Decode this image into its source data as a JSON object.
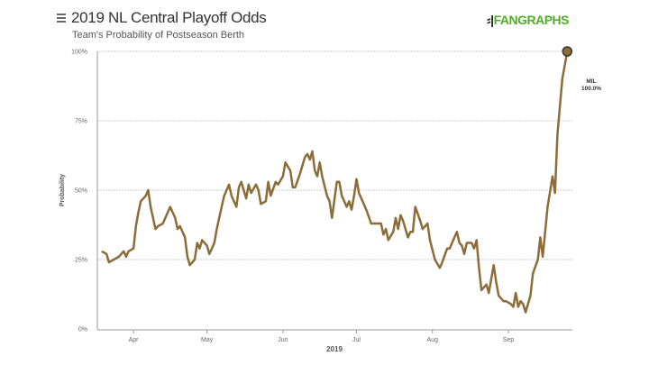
{
  "header": {
    "title": "2019 NL Central Playoff Odds",
    "subtitle": "Team's Probability of Postseason Berth",
    "logo": "FANGRAPHS"
  },
  "chart_data": {
    "type": "line",
    "title": "2019 NL Central Playoff Odds",
    "subtitle": "Team's Probability of Postseason Berth",
    "xlabel": "2019",
    "ylabel": "Probability",
    "xlim": [
      "2019-03-18",
      "2019-09-26"
    ],
    "ylim": [
      0,
      100
    ],
    "x_ticks": [
      {
        "date": "2019-04-01",
        "label": "Apr"
      },
      {
        "date": "2019-05-01",
        "label": "May"
      },
      {
        "date": "2019-06-01",
        "label": "Jun"
      },
      {
        "date": "2019-07-01",
        "label": "Jul"
      },
      {
        "date": "2019-08-01",
        "label": "Aug"
      },
      {
        "date": "2019-09-01",
        "label": "Sep"
      }
    ],
    "y_ticks": [
      {
        "value": 0,
        "label": "0%"
      },
      {
        "value": 25,
        "label": "25%"
      },
      {
        "value": 50,
        "label": "50%"
      },
      {
        "value": 75,
        "label": "75%"
      },
      {
        "value": 100,
        "label": "100%"
      }
    ],
    "grid": "horizontal dotted",
    "series": [
      {
        "name": "MIL",
        "color": "#8c6d3a",
        "end_label": "100.0%",
        "points": [
          [
            "2019-03-19",
            28
          ],
          [
            "2019-03-21",
            27
          ],
          [
            "2019-03-22",
            24
          ],
          [
            "2019-03-24",
            25
          ],
          [
            "2019-03-26",
            26
          ],
          [
            "2019-03-28",
            28
          ],
          [
            "2019-03-29",
            26
          ],
          [
            "2019-03-30",
            28
          ],
          [
            "2019-04-01",
            29
          ],
          [
            "2019-04-02",
            37
          ],
          [
            "2019-04-03",
            42
          ],
          [
            "2019-04-04",
            46
          ],
          [
            "2019-04-06",
            48
          ],
          [
            "2019-04-07",
            50
          ],
          [
            "2019-04-08",
            44
          ],
          [
            "2019-04-10",
            36
          ],
          [
            "2019-04-11",
            37
          ],
          [
            "2019-04-13",
            38
          ],
          [
            "2019-04-14",
            40
          ],
          [
            "2019-04-15",
            42
          ],
          [
            "2019-04-16",
            44
          ],
          [
            "2019-04-18",
            40
          ],
          [
            "2019-04-19",
            36
          ],
          [
            "2019-04-20",
            37
          ],
          [
            "2019-04-22",
            33
          ],
          [
            "2019-04-23",
            26
          ],
          [
            "2019-04-24",
            23
          ],
          [
            "2019-04-26",
            25
          ],
          [
            "2019-04-27",
            31
          ],
          [
            "2019-04-28",
            29
          ],
          [
            "2019-04-29",
            32
          ],
          [
            "2019-05-01",
            30
          ],
          [
            "2019-05-02",
            27
          ],
          [
            "2019-05-04",
            31
          ],
          [
            "2019-05-05",
            36
          ],
          [
            "2019-05-07",
            44
          ],
          [
            "2019-05-08",
            48
          ],
          [
            "2019-05-10",
            52
          ],
          [
            "2019-05-11",
            48
          ],
          [
            "2019-05-13",
            44
          ],
          [
            "2019-05-14",
            51
          ],
          [
            "2019-05-15",
            53
          ],
          [
            "2019-05-17",
            47
          ],
          [
            "2019-05-18",
            52
          ],
          [
            "2019-05-19",
            49
          ],
          [
            "2019-05-21",
            52
          ],
          [
            "2019-05-22",
            50
          ],
          [
            "2019-05-23",
            45
          ],
          [
            "2019-05-25",
            46
          ],
          [
            "2019-05-26",
            53
          ],
          [
            "2019-05-27",
            48
          ],
          [
            "2019-05-29",
            53
          ],
          [
            "2019-05-30",
            52
          ],
          [
            "2019-06-01",
            55
          ],
          [
            "2019-06-02",
            60
          ],
          [
            "2019-06-04",
            57
          ],
          [
            "2019-06-05",
            51
          ],
          [
            "2019-06-06",
            51
          ],
          [
            "2019-06-08",
            56
          ],
          [
            "2019-06-10",
            62
          ],
          [
            "2019-06-11",
            63
          ],
          [
            "2019-06-12",
            61
          ],
          [
            "2019-06-13",
            64
          ],
          [
            "2019-06-14",
            57
          ],
          [
            "2019-06-15",
            55
          ],
          [
            "2019-06-16",
            60
          ],
          [
            "2019-06-17",
            55
          ],
          [
            "2019-06-19",
            48
          ],
          [
            "2019-06-20",
            46
          ],
          [
            "2019-06-21",
            40
          ],
          [
            "2019-06-23",
            53
          ],
          [
            "2019-06-24",
            53
          ],
          [
            "2019-06-25",
            48
          ],
          [
            "2019-06-27",
            44
          ],
          [
            "2019-06-28",
            46
          ],
          [
            "2019-06-29",
            43
          ],
          [
            "2019-06-30",
            48
          ],
          [
            "2019-07-01",
            54
          ],
          [
            "2019-07-02",
            49
          ],
          [
            "2019-07-04",
            45
          ],
          [
            "2019-07-05",
            43
          ],
          [
            "2019-07-07",
            38
          ],
          [
            "2019-07-08",
            38
          ],
          [
            "2019-07-09",
            38
          ],
          [
            "2019-07-11",
            38
          ],
          [
            "2019-07-12",
            34
          ],
          [
            "2019-07-13",
            36
          ],
          [
            "2019-07-14",
            32
          ],
          [
            "2019-07-16",
            35
          ],
          [
            "2019-07-17",
            40
          ],
          [
            "2019-07-18",
            36
          ],
          [
            "2019-07-19",
            41
          ],
          [
            "2019-07-20",
            39
          ],
          [
            "2019-07-22",
            33
          ],
          [
            "2019-07-23",
            35
          ],
          [
            "2019-07-24",
            35
          ],
          [
            "2019-07-25",
            44
          ],
          [
            "2019-07-27",
            39
          ],
          [
            "2019-07-28",
            36
          ],
          [
            "2019-07-30",
            38
          ],
          [
            "2019-07-31",
            32
          ],
          [
            "2019-08-02",
            25
          ],
          [
            "2019-08-04",
            22
          ],
          [
            "2019-08-05",
            24
          ],
          [
            "2019-08-07",
            29
          ],
          [
            "2019-08-08",
            29
          ],
          [
            "2019-08-09",
            31
          ],
          [
            "2019-08-11",
            35
          ],
          [
            "2019-08-12",
            31
          ],
          [
            "2019-08-13",
            30
          ],
          [
            "2019-08-14",
            27
          ],
          [
            "2019-08-15",
            31
          ],
          [
            "2019-08-17",
            31
          ],
          [
            "2019-08-18",
            29
          ],
          [
            "2019-08-19",
            32
          ],
          [
            "2019-08-20",
            22
          ],
          [
            "2019-08-21",
            14
          ],
          [
            "2019-08-23",
            16
          ],
          [
            "2019-08-24",
            13
          ],
          [
            "2019-08-26",
            23
          ],
          [
            "2019-08-27",
            17
          ],
          [
            "2019-08-28",
            12
          ],
          [
            "2019-08-30",
            10
          ],
          [
            "2019-08-31",
            10
          ],
          [
            "2019-09-02",
            9
          ],
          [
            "2019-09-03",
            8
          ],
          [
            "2019-09-04",
            13
          ],
          [
            "2019-09-05",
            8
          ],
          [
            "2019-09-06",
            10
          ],
          [
            "2019-09-07",
            9
          ],
          [
            "2019-09-08",
            6
          ],
          [
            "2019-09-10",
            12
          ],
          [
            "2019-09-11",
            20
          ],
          [
            "2019-09-13",
            25
          ],
          [
            "2019-09-14",
            33
          ],
          [
            "2019-09-15",
            26
          ],
          [
            "2019-09-16",
            35
          ],
          [
            "2019-09-17",
            44
          ],
          [
            "2019-09-19",
            55
          ],
          [
            "2019-09-20",
            49
          ],
          [
            "2019-09-21",
            70
          ],
          [
            "2019-09-23",
            90
          ],
          [
            "2019-09-25",
            100
          ]
        ]
      }
    ]
  }
}
